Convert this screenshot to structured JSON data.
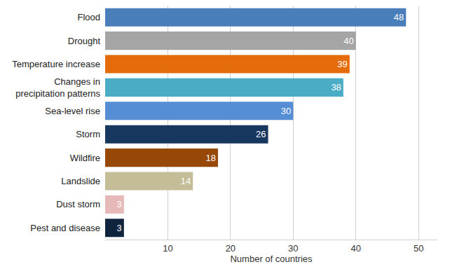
{
  "chart_data": {
    "type": "bar",
    "orientation": "horizontal",
    "categories": [
      "Flood",
      "Drought",
      "Temperature increase",
      "Changes in precipitation patterns",
      "Sea-level rise",
      "Storm",
      "Wildfire",
      "Landslide",
      "Dust storm",
      "Pest and disease"
    ],
    "values": [
      48,
      40,
      39,
      38,
      30,
      26,
      18,
      14,
      3,
      3
    ],
    "colors": [
      "#4a7ebb",
      "#a5a5a5",
      "#e46c0a",
      "#4bacc6",
      "#558ed5",
      "#17375e",
      "#974706",
      "#c4bd97",
      "#e6b9b8",
      "#10243e"
    ],
    "xlabel": "Number of countries",
    "xlim": [
      0,
      53
    ],
    "xticks": [
      10,
      20,
      30,
      40,
      50
    ],
    "grid": true,
    "data_labels": true
  }
}
